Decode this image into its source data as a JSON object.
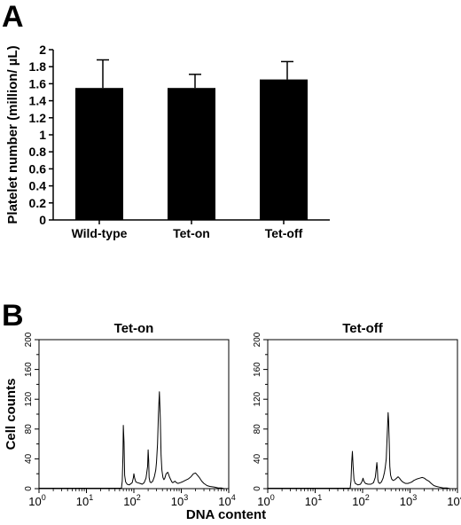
{
  "chart_data": [
    {
      "panel": "A",
      "type": "bar",
      "categories": [
        "Wild-type",
        "Tet-on",
        "Tet-off"
      ],
      "values": [
        1.55,
        1.55,
        1.65
      ],
      "errors": [
        0.33,
        0.16,
        0.21
      ],
      "xlabel": "",
      "ylabel": "Platelet number (million/ µL)",
      "ylim": [
        0,
        2
      ],
      "yticks": [
        "0",
        "0.2",
        "0.4",
        "0.6",
        "0.8",
        "1",
        "1.2",
        "1.4",
        "1.6",
        "1.8",
        "2"
      ],
      "bar_color": "#000000"
    },
    {
      "panel": "B",
      "type": "line",
      "xlabel": "DNA content",
      "ylabel": "Cell counts",
      "xscale": "log",
      "xlim": [
        1,
        10000
      ],
      "ylim": [
        0,
        200
      ],
      "xticks": [
        {
          "base": "10",
          "exp": "0"
        },
        {
          "base": "10",
          "exp": "1"
        },
        {
          "base": "10",
          "exp": "2"
        },
        {
          "base": "10",
          "exp": "3"
        },
        {
          "base": "10",
          "exp": "4"
        }
      ],
      "yticks": [
        "0",
        "40",
        "80",
        "120",
        "160",
        "200"
      ],
      "series": [
        {
          "name": "Tet-on",
          "x": [
            55,
            57,
            59,
            60,
            62,
            64,
            67,
            72,
            80,
            92,
            98,
            100,
            104,
            110,
            120,
            135,
            150,
            165,
            180,
            195,
            200,
            205,
            210,
            218,
            230,
            250,
            270,
            290,
            300,
            315,
            330,
            345,
            360,
            375,
            390,
            410,
            430,
            450,
            480,
            520,
            570,
            600,
            630,
            660,
            700,
            740,
            790,
            850,
            950,
            1050,
            1200,
            1400,
            1600,
            1800,
            2000,
            2200,
            2400,
            2700,
            3000,
            3500,
            4000,
            5000,
            6000,
            7000,
            8000
          ],
          "y": [
            2,
            10,
            45,
            85,
            62,
            18,
            9,
            6,
            5,
            8,
            15,
            20,
            14,
            9,
            8,
            7,
            6,
            8,
            14,
            30,
            52,
            38,
            15,
            9,
            8,
            10,
            16,
            25,
            35,
            60,
            100,
            130,
            95,
            45,
            25,
            15,
            12,
            14,
            20,
            22,
            15,
            12,
            9,
            8,
            9,
            10,
            8,
            7,
            8,
            9,
            11,
            13,
            16,
            20,
            21,
            18,
            15,
            10,
            7,
            4,
            3,
            2,
            1,
            1,
            0
          ],
          "line_color": "#000000"
        },
        {
          "name": "Tet-off",
          "x": [
            55,
            57,
            59,
            61,
            63,
            66,
            70,
            80,
            90,
            98,
            102,
            106,
            115,
            130,
            150,
            170,
            185,
            195,
            200,
            205,
            210,
            218,
            230,
            250,
            270,
            290,
            300,
            315,
            330,
            345,
            355,
            365,
            375,
            390,
            410,
            440,
            480,
            520,
            560,
            600,
            650,
            700,
            750,
            800,
            900,
            1000,
            1100,
            1200,
            1400,
            1600,
            1800,
            2000,
            2200,
            2500,
            2800,
            3200,
            3600,
            4200,
            5000,
            6000,
            7000,
            8000
          ],
          "y": [
            2,
            10,
            35,
            50,
            30,
            12,
            7,
            5,
            6,
            10,
            14,
            10,
            7,
            6,
            6,
            8,
            15,
            28,
            35,
            26,
            12,
            8,
            7,
            9,
            14,
            22,
            28,
            40,
            70,
            102,
            90,
            60,
            30,
            18,
            13,
            11,
            12,
            14,
            16,
            14,
            11,
            9,
            8,
            7,
            7,
            8,
            9,
            11,
            13,
            14,
            15,
            14,
            12,
            10,
            7,
            4,
            3,
            2,
            1,
            1,
            0,
            0
          ],
          "line_color": "#000000"
        }
      ]
    }
  ]
}
